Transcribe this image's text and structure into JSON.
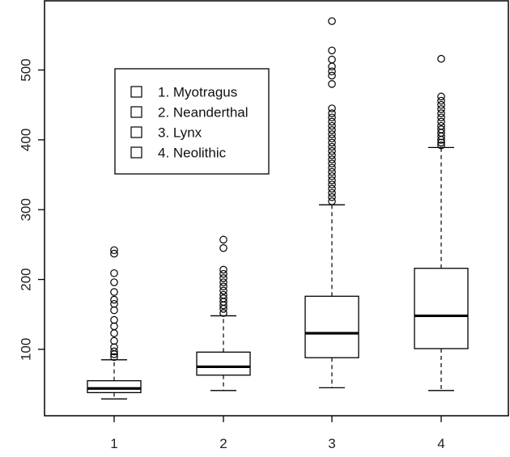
{
  "chart_data": {
    "type": "boxplot",
    "categories": [
      "1",
      "2",
      "3",
      "4"
    ],
    "ylim": [
      0,
      580
    ],
    "yticks": [
      100,
      200,
      300,
      400,
      500
    ],
    "legend": {
      "placement": "top-left",
      "entries": [
        "1. Myotragus",
        "2. Neanderthal",
        "3. Lynx",
        "4. Neolithic"
      ]
    },
    "boxes": [
      {
        "label": "1",
        "whisker_low": 29,
        "q1": 38,
        "median": 44,
        "q3": 55,
        "whisker_high": 85,
        "outliers": [
          89,
          93,
          97,
          103,
          112,
          123,
          133,
          142,
          156,
          165,
          171,
          182,
          196,
          209,
          237,
          242
        ]
      },
      {
        "label": "2",
        "whisker_low": 41,
        "q1": 63,
        "median": 75,
        "q3": 96,
        "whisker_high": 148,
        "outliers": [
          152,
          158,
          163,
          168,
          173,
          178,
          184,
          190,
          196,
          202,
          208,
          214,
          245,
          257
        ]
      },
      {
        "label": "3",
        "whisker_low": 45,
        "q1": 88,
        "median": 123,
        "q3": 176,
        "whisker_high": 307,
        "outliers": [
          312,
          318,
          324,
          330,
          336,
          342,
          348,
          354,
          360,
          366,
          372,
          378,
          384,
          390,
          396,
          402,
          408,
          414,
          420,
          426,
          432,
          438,
          445,
          480,
          492,
          498,
          505,
          515,
          528,
          570
        ]
      },
      {
        "label": "4",
        "whisker_low": 41,
        "q1": 101,
        "median": 148,
        "q3": 216,
        "whisker_high": 389,
        "outliers": [
          392,
          396,
          400,
          405,
          410,
          415,
          420,
          426,
          432,
          438,
          444,
          450,
          456,
          462,
          516
        ]
      }
    ]
  }
}
